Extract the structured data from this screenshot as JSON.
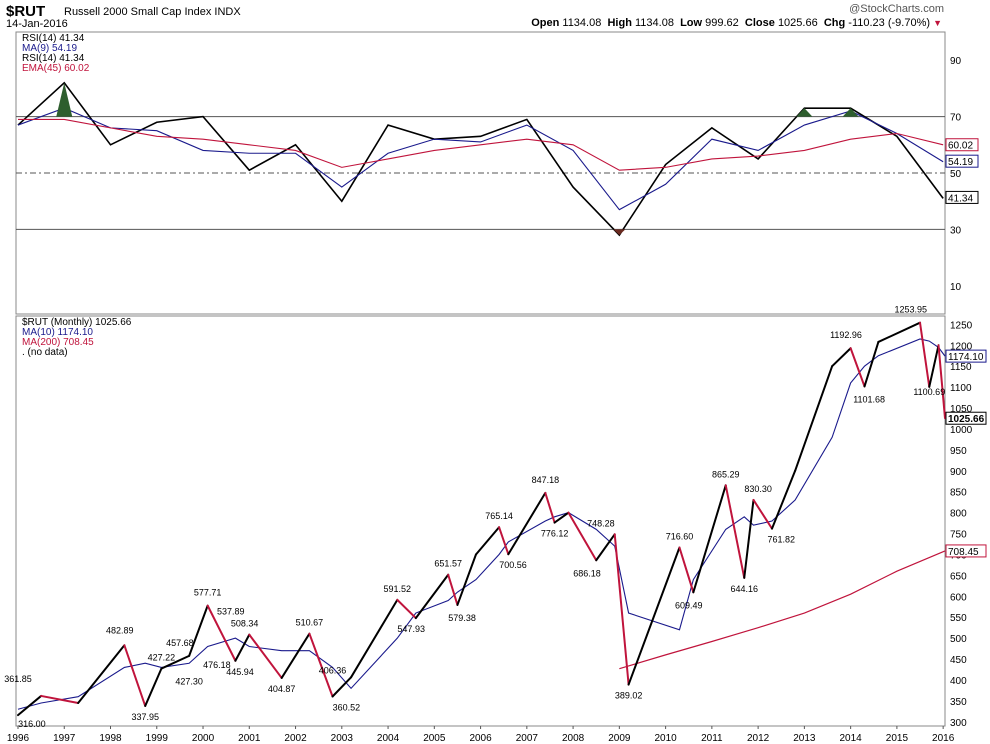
{
  "header": {
    "symbol": "$RUT",
    "title": "Russell 2000 Small Cap Index INDX",
    "date": "14-Jan-2016",
    "brand": "@StockCharts.com",
    "open_label": "Open",
    "open": "1134.08",
    "high_label": "High",
    "high": "1134.08",
    "low_label": "Low",
    "low": "999.62",
    "close_label": "Close",
    "close": "1025.66",
    "chg_label": "Chg",
    "chg": "-110.23 (-9.70%)"
  },
  "colors": {
    "price": "#000000",
    "down": "#c0143c",
    "ma10": "#1a1a8c",
    "ma200": "#c0143c",
    "rsi": "#000000",
    "rsi_ma": "#1a1a8c",
    "rsi_ema": "#c0143c",
    "ob": "#2e5e2e",
    "os": "#6b2a20"
  },
  "chart_data": [
    {
      "type": "line",
      "panel": "rsi",
      "legend": [
        "RSI(14) 41.34",
        "MA(9) 54.19",
        "RSI(14) 41.34",
        "EMA(45) 60.02"
      ],
      "ylim": [
        0,
        100
      ],
      "yticks": [
        10,
        30,
        50,
        70,
        90
      ],
      "reference_lines": [
        30,
        50,
        70
      ],
      "right_labels": [
        "60.02",
        "54.19",
        "41.34"
      ],
      "x": [
        1996,
        1997,
        1998,
        1999,
        2000,
        2001,
        2002,
        2003,
        2004,
        2005,
        2006,
        2007,
        2008,
        2009,
        2010,
        2011,
        2012,
        2013,
        2014,
        2015,
        2016
      ],
      "series": [
        {
          "name": "RSI(14)",
          "values": [
            67,
            82,
            60,
            68,
            70,
            51,
            60,
            40,
            67,
            62,
            63,
            69,
            45,
            28,
            53,
            66,
            55,
            73,
            73,
            63,
            41
          ]
        },
        {
          "name": "MA(9)",
          "values": [
            67,
            73,
            66,
            65,
            58,
            57,
            57,
            45,
            57,
            62,
            61,
            67,
            58,
            37,
            46,
            62,
            58,
            67,
            72,
            64,
            54
          ]
        },
        {
          "name": "EMA(45)",
          "values": [
            69,
            69,
            66,
            63,
            62,
            60,
            58,
            52,
            55,
            58,
            60,
            62,
            60,
            51,
            52,
            55,
            56,
            58,
            62,
            64,
            60
          ]
        }
      ]
    },
    {
      "type": "line",
      "panel": "price",
      "legend": [
        "$RUT (Monthly) 1025.66",
        "MA(10) 1174.10",
        "MA(200) 708.45",
        ". (no data)"
      ],
      "ylim": [
        290,
        1270
      ],
      "yticks": [
        300,
        350,
        400,
        450,
        500,
        550,
        600,
        650,
        700,
        750,
        800,
        850,
        900,
        950,
        1000,
        1050,
        1100,
        1150,
        1200,
        1250
      ],
      "right_labels": [
        "1174.10",
        "1025.66",
        "708.45"
      ],
      "xlabels": [
        "1996",
        "1997",
        "1998",
        "1999",
        "2000",
        "2001",
        "2002",
        "2003",
        "2004",
        "2005",
        "2006",
        "2007",
        "2008",
        "2009",
        "2010",
        "2011",
        "2012",
        "2013",
        "2014",
        "2015",
        "2016"
      ],
      "x": [
        1996.0,
        1996.5,
        1997.3,
        1998.3,
        1998.75,
        1999.1,
        1999.7,
        2000.1,
        2000.7,
        2001.0,
        2001.7,
        2002.3,
        2002.8,
        2003.2,
        2004.2,
        2004.6,
        2005.3,
        2005.5,
        2005.9,
        2006.4,
        2006.6,
        2007.4,
        2007.6,
        2007.9,
        2008.5,
        2008.9,
        2009.2,
        2010.3,
        2010.6,
        2011.3,
        2011.7,
        2011.9,
        2012.3,
        2012.8,
        2013.6,
        2014.0,
        2014.3,
        2014.6,
        2015.5,
        2015.7,
        2015.9,
        2016.04
      ],
      "values": [
        316.0,
        361.85,
        345,
        482.89,
        337.95,
        427.22,
        457.68,
        577.71,
        445.94,
        508.34,
        404.87,
        510.67,
        360.52,
        406.36,
        591.52,
        547.93,
        651.57,
        579.38,
        700,
        765.14,
        700.56,
        847.18,
        776.12,
        800,
        686.18,
        748.28,
        389.02,
        716.6,
        609.49,
        865.29,
        644.16,
        830.3,
        761.82,
        900,
        1150,
        1192.96,
        1101.68,
        1208,
        1253.95,
        1100.69,
        1200,
        1025.66
      ],
      "ma10": [
        330,
        345,
        360,
        430,
        440,
        430,
        440,
        480,
        500,
        480,
        470,
        470,
        430,
        380,
        500,
        560,
        590,
        610,
        640,
        700,
        730,
        780,
        790,
        800,
        760,
        720,
        560,
        520,
        640,
        760,
        790,
        770,
        780,
        830,
        980,
        1110,
        1150,
        1175,
        1215,
        1210,
        1195,
        1174.1
      ],
      "ma200_x": [
        2009.0,
        2010.0,
        2011.0,
        2012.0,
        2013.0,
        2014.0,
        2015.0,
        2016.04
      ],
      "ma200": [
        427,
        460,
        492,
        525,
        560,
        605,
        660,
        708.45
      ],
      "annotations": [
        "361.85",
        "316.00",
        "482.89",
        "337.95",
        "427.22",
        "457.68",
        "427.30",
        "577.71",
        "537.89",
        "508.34",
        "476.18",
        "445.94",
        "404.87",
        "510.67",
        "406.36",
        "360.52",
        "591.52",
        "547.93",
        "651.57",
        "579.38",
        "765.14",
        "700.56",
        "847.18",
        "776.12",
        "748.28",
        "686.18",
        "389.02",
        "716.60",
        "609.49",
        "865.29",
        "644.16",
        "830.30",
        "761.82",
        "1192.96",
        "1101.68",
        "1253.95",
        "1100.69"
      ]
    }
  ]
}
